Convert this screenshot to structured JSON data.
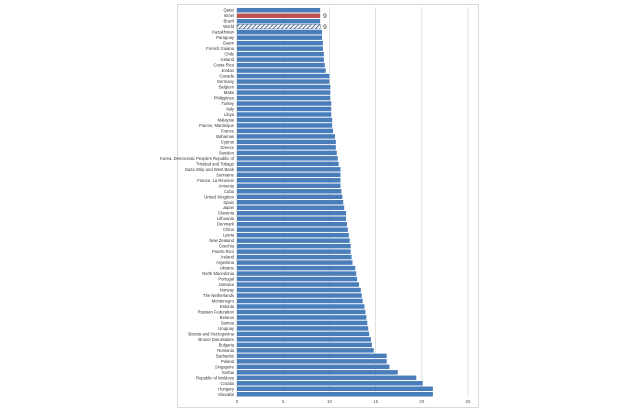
{
  "chart_data": {
    "type": "bar",
    "orientation": "horizontal",
    "title": "",
    "xlabel": "",
    "ylabel": "",
    "xlim": [
      0,
      25
    ],
    "x_ticks": [
      "0",
      "5",
      "10",
      "15",
      "20",
      "25"
    ],
    "grid": "vertical",
    "colors": {
      "default": "#4a7ebb",
      "highlight": "#c0504d",
      "hatched": "#ffffff",
      "hatch": "#1f4e79"
    },
    "categories": [
      "Qatar",
      "Israel",
      "Brazil",
      "World",
      "Kazakhstan",
      "Paraguay",
      "Guam",
      "French Guiana",
      "Chile",
      "Iceland",
      "Costa Rica",
      "Jordan",
      "Canada",
      "Germany",
      "Belgium",
      "Malta",
      "Philippines",
      "Turkey",
      "Italy",
      "Libya",
      "Malaysia",
      "France, Martinique",
      "France",
      "Bahamas",
      "Cyprus",
      "Greece",
      "Sweden",
      "Korea, Democratic People's Republic of",
      "Trinidad and Tobago",
      "Gaza Strip and West Bank",
      "Suriname",
      "France, La Réunion",
      "Armenia",
      "Cuba",
      "United Kingdom",
      "Spain",
      "Japan",
      "Slovenia",
      "Lithuania",
      "Denmark",
      "China",
      "Latvia",
      "New Zealand",
      "Czechia",
      "Puerto Rico",
      "Ireland",
      "Argentina",
      "Ukraine",
      "North Macedonia",
      "Portugal",
      "Jamaica",
      "Norway",
      "The Netherlands",
      "Montenegro",
      "Estonia",
      "Russian Federation",
      "Belarus",
      "Samoa",
      "Uruguay",
      "Bosnia and Herzegovina",
      "Brunei Darussalam",
      "Bulgaria",
      "Romania",
      "Barbados",
      "Poland",
      "Singapore",
      "Serbia",
      "Republic of Moldova",
      "Croatia",
      "Hungary",
      "Slovakia"
    ],
    "values": [
      9.0,
      9.0,
      9.0,
      9.0,
      9.2,
      9.2,
      9.3,
      9.3,
      9.4,
      9.4,
      9.5,
      9.6,
      10.0,
      10.0,
      10.1,
      10.1,
      10.1,
      10.2,
      10.2,
      10.2,
      10.3,
      10.3,
      10.4,
      10.6,
      10.7,
      10.7,
      10.8,
      10.9,
      11.0,
      11.2,
      11.2,
      11.2,
      11.2,
      11.3,
      11.4,
      11.5,
      11.6,
      11.8,
      11.8,
      11.9,
      12.0,
      12.1,
      12.2,
      12.3,
      12.3,
      12.4,
      12.5,
      12.8,
      12.9,
      13.0,
      13.2,
      13.4,
      13.5,
      13.6,
      13.8,
      13.9,
      14.0,
      14.1,
      14.2,
      14.3,
      14.5,
      14.6,
      14.8,
      16.2,
      16.2,
      16.5,
      17.4,
      19.4,
      20.1,
      21.2,
      21.2
    ],
    "highlight_index": 1,
    "hatched_index": 3,
    "data_labels": [
      {
        "index": 1,
        "text": "9"
      },
      {
        "index": 3,
        "text": "9"
      }
    ]
  }
}
